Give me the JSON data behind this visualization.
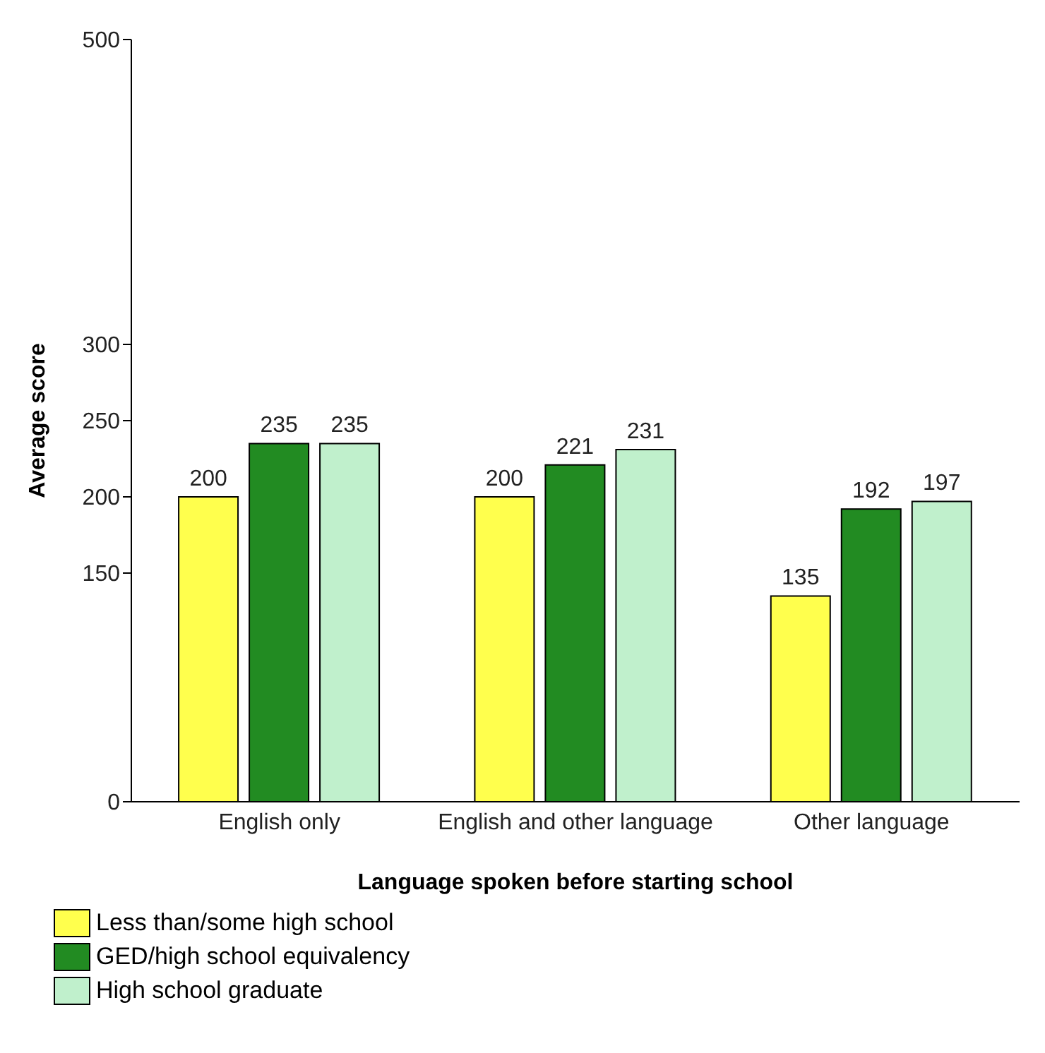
{
  "chart_data": {
    "type": "bar",
    "xlabel": "Language spoken before starting school",
    "ylabel": "Average score",
    "categories": [
      "English only",
      "English and other language",
      "Other language"
    ],
    "series": [
      {
        "name": "Less than/some high school",
        "color": "#ffff4d",
        "values": [
          200,
          200,
          135
        ]
      },
      {
        "name": "GED/high school equivalency",
        "color": "#228b22",
        "values": [
          235,
          221,
          192
        ]
      },
      {
        "name": "High school graduate",
        "color": "#c0f0cc",
        "values": [
          235,
          231,
          197
        ]
      }
    ],
    "ylim": [
      0,
      500
    ],
    "yticks": [
      0,
      150,
      200,
      250,
      300,
      500
    ],
    "data_labels": true,
    "grid": false,
    "legend": "bottom"
  }
}
